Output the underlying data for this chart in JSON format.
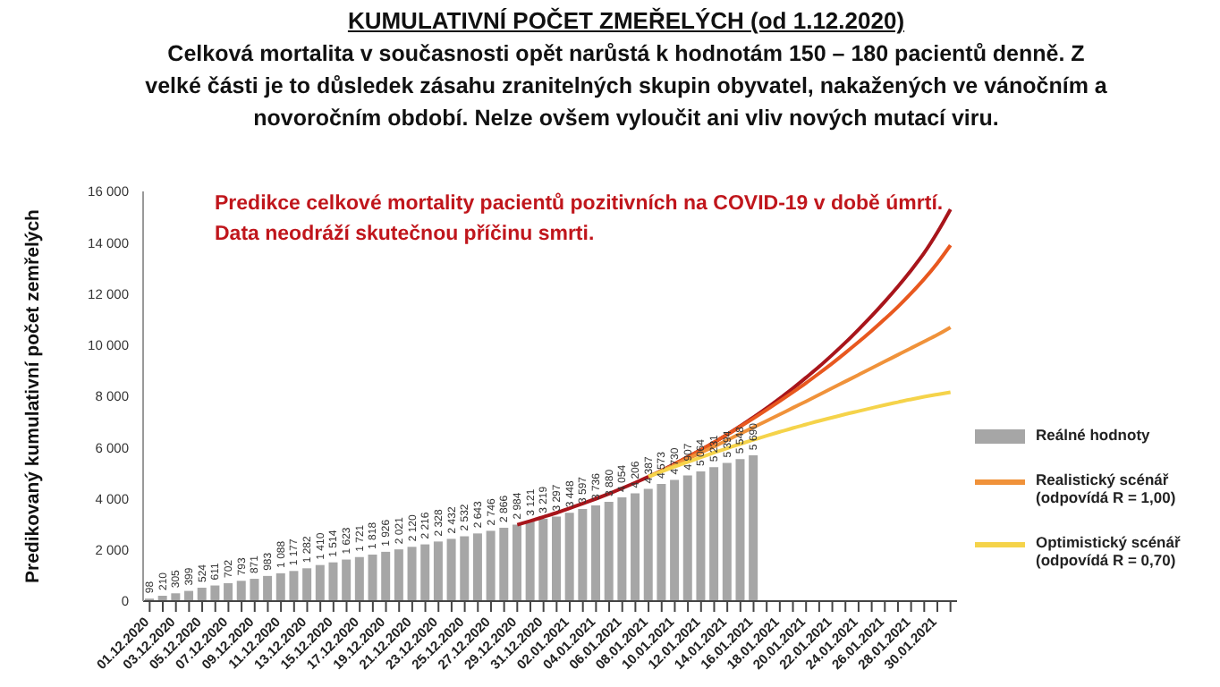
{
  "chart_data": {
    "type": "bar",
    "title": "KUMULATIVNÍ POČET ZMEŘELÝCH (od 1.12.2020)",
    "subtitle": "Celková mortalita v současnosti opět narůstá k hodnotám 150 – 180 pacientů denně. Z velké části je to důsledek zásahu zranitelných skupin obyvatel, nakažených ve vánočním a novoročním období. Nelze ovšem vyloučit ani vliv nových mutací viru.",
    "ylabel": "Predikovaný kumulativní počet zemřelých",
    "annotations": [
      "Predikce celkové mortality pacientů pozitivních na COVID-19 v době úmrtí. Data neodráží skutečnou příčinu smrti."
    ],
    "categories": [
      "01.12.2020",
      null,
      "03.12.2020",
      null,
      "05.12.2020",
      null,
      "07.12.2020",
      null,
      "09.12.2020",
      null,
      "11.12.2020",
      null,
      "13.12.2020",
      null,
      "15.12.2020",
      null,
      "17.12.2020",
      null,
      "19.12.2020",
      null,
      "21.12.2020",
      null,
      "23.12.2020",
      null,
      "25.12.2020",
      null,
      "27.12.2020",
      null,
      "29.12.2020",
      null,
      "31.12.2020",
      null,
      "02.01.2021",
      null,
      "04.01.2021",
      null,
      "06.01.2021",
      null,
      "08.01.2021",
      null,
      "10.01.2021",
      null,
      "12.01.2021",
      null,
      "14.01.2021",
      null,
      "16.01.2021",
      null,
      "18.01.2021",
      null,
      "20.01.2021",
      null,
      "22.01.2021",
      null,
      "24.01.2021",
      null,
      "26.01.2021",
      null,
      "28.01.2021",
      null,
      "30.01.2021",
      null
    ],
    "series": [
      {
        "name": "Reálné hodnoty",
        "color": "#a6a6a6",
        "values": [
          98,
          210,
          305,
          399,
          524,
          611,
          702,
          793,
          871,
          983,
          1088,
          1177,
          1282,
          1410,
          1514,
          1623,
          1721,
          1818,
          1926,
          2021,
          2120,
          2216,
          2328,
          2432,
          2532,
          2643,
          2746,
          2866,
          2984,
          3121,
          3219,
          3297,
          3448,
          3597,
          3736,
          3880,
          4054,
          4206,
          4387,
          4573,
          4730,
          4907,
          5064,
          5231,
          5394,
          5548,
          5690,
          null,
          null,
          null,
          null,
          null,
          null,
          null,
          null,
          null,
          null,
          null,
          null,
          null,
          null,
          null
        ],
        "value_labels": [
          "98",
          "210",
          "305",
          "399",
          "524",
          "611",
          "702",
          "793",
          "871",
          "983",
          "1 088",
          "1 177",
          "1 282",
          "1 410",
          "1 514",
          "1 623",
          "1 721",
          "1 818",
          "1 926",
          "2 021",
          "2 120",
          "2 216",
          "2 328",
          "2 432",
          "2 532",
          "2 643",
          "2 746",
          "2 866",
          "2 984",
          "3 121",
          "3 219",
          "3 297",
          "3 448",
          "3 597",
          "3 736",
          "3 880",
          "4 054",
          "4 206",
          "4 387",
          "4 573",
          "4 730",
          "4 907",
          "5 064",
          "5 231",
          "5 394",
          "5 548",
          "5 690",
          null,
          null,
          null,
          null,
          null,
          null,
          null,
          null,
          null,
          null,
          null,
          null,
          null,
          null,
          null
        ]
      },
      {
        "type": "line",
        "color": "#a8151b",
        "values": [
          null,
          null,
          null,
          null,
          null,
          null,
          null,
          null,
          null,
          null,
          null,
          null,
          null,
          null,
          null,
          null,
          null,
          null,
          null,
          null,
          null,
          null,
          null,
          null,
          null,
          null,
          null,
          null,
          2980,
          3130,
          3290,
          3450,
          3630,
          3810,
          4000,
          4200,
          4410,
          4630,
          4860,
          5100,
          5360,
          5630,
          5910,
          6200,
          6510,
          6840,
          7180,
          7540,
          7920,
          8310,
          8730,
          9160,
          9620,
          10100,
          10610,
          11140,
          11700,
          12290,
          12920,
          13600,
          14400,
          15300
        ]
      },
      {
        "type": "line",
        "color": "#e8581f",
        "values": [
          null,
          null,
          null,
          null,
          null,
          null,
          null,
          null,
          null,
          null,
          null,
          null,
          null,
          null,
          null,
          null,
          null,
          null,
          null,
          null,
          null,
          null,
          null,
          null,
          null,
          null,
          null,
          null,
          null,
          null,
          null,
          null,
          null,
          null,
          null,
          null,
          null,
          null,
          null,
          null,
          5360,
          5630,
          5910,
          6200,
          6510,
          6820,
          7140,
          7470,
          7810,
          8160,
          8520,
          8900,
          9290,
          9700,
          10120,
          10560,
          11020,
          11500,
          12020,
          12580,
          13200,
          13900
        ]
      },
      {
        "type": "line",
        "name": "Realistický scénář (odpovídá R = 1,00)",
        "color": "#f0923a",
        "values": [
          null,
          null,
          null,
          null,
          null,
          null,
          null,
          null,
          null,
          null,
          null,
          null,
          null,
          null,
          null,
          null,
          null,
          null,
          null,
          null,
          null,
          null,
          null,
          null,
          null,
          null,
          null,
          null,
          null,
          null,
          null,
          null,
          null,
          null,
          null,
          null,
          null,
          null,
          4860,
          5090,
          5320,
          5560,
          5800,
          6040,
          6290,
          6540,
          6790,
          7040,
          7290,
          7550,
          7800,
          8060,
          8320,
          8580,
          8840,
          9100,
          9360,
          9620,
          9880,
          10140,
          10400,
          10690
        ]
      },
      {
        "type": "line",
        "name": "Optimistický scénář (odpovídá R = 0,70)",
        "color": "#f5d34a",
        "values": [
          null,
          null,
          null,
          null,
          null,
          null,
          null,
          null,
          null,
          null,
          null,
          null,
          null,
          null,
          null,
          null,
          null,
          null,
          null,
          null,
          null,
          null,
          null,
          null,
          null,
          null,
          null,
          null,
          null,
          null,
          null,
          null,
          null,
          null,
          null,
          null,
          null,
          null,
          4860,
          5060,
          5250,
          5440,
          5620,
          5800,
          5970,
          6140,
          6300,
          6460,
          6610,
          6760,
          6900,
          7040,
          7170,
          7300,
          7420,
          7540,
          7660,
          7770,
          7880,
          7980,
          8070,
          8160
        ]
      }
    ],
    "ylim": [
      0,
      16000
    ],
    "yticks": [
      0,
      {
        "value": 2000,
        "label": "2 000"
      },
      {
        "value": 4000,
        "label": "4 000"
      },
      {
        "value": 6000,
        "label": "6 000"
      },
      {
        "value": 8000,
        "label": "8 000"
      },
      {
        "value": 10000,
        "label": "10 000"
      },
      {
        "value": 12000,
        "label": "12 000"
      },
      {
        "value": 14000,
        "label": "14 000"
      },
      {
        "value": 16000,
        "label": "16 000"
      }
    ],
    "grid": false,
    "legend": "right"
  }
}
